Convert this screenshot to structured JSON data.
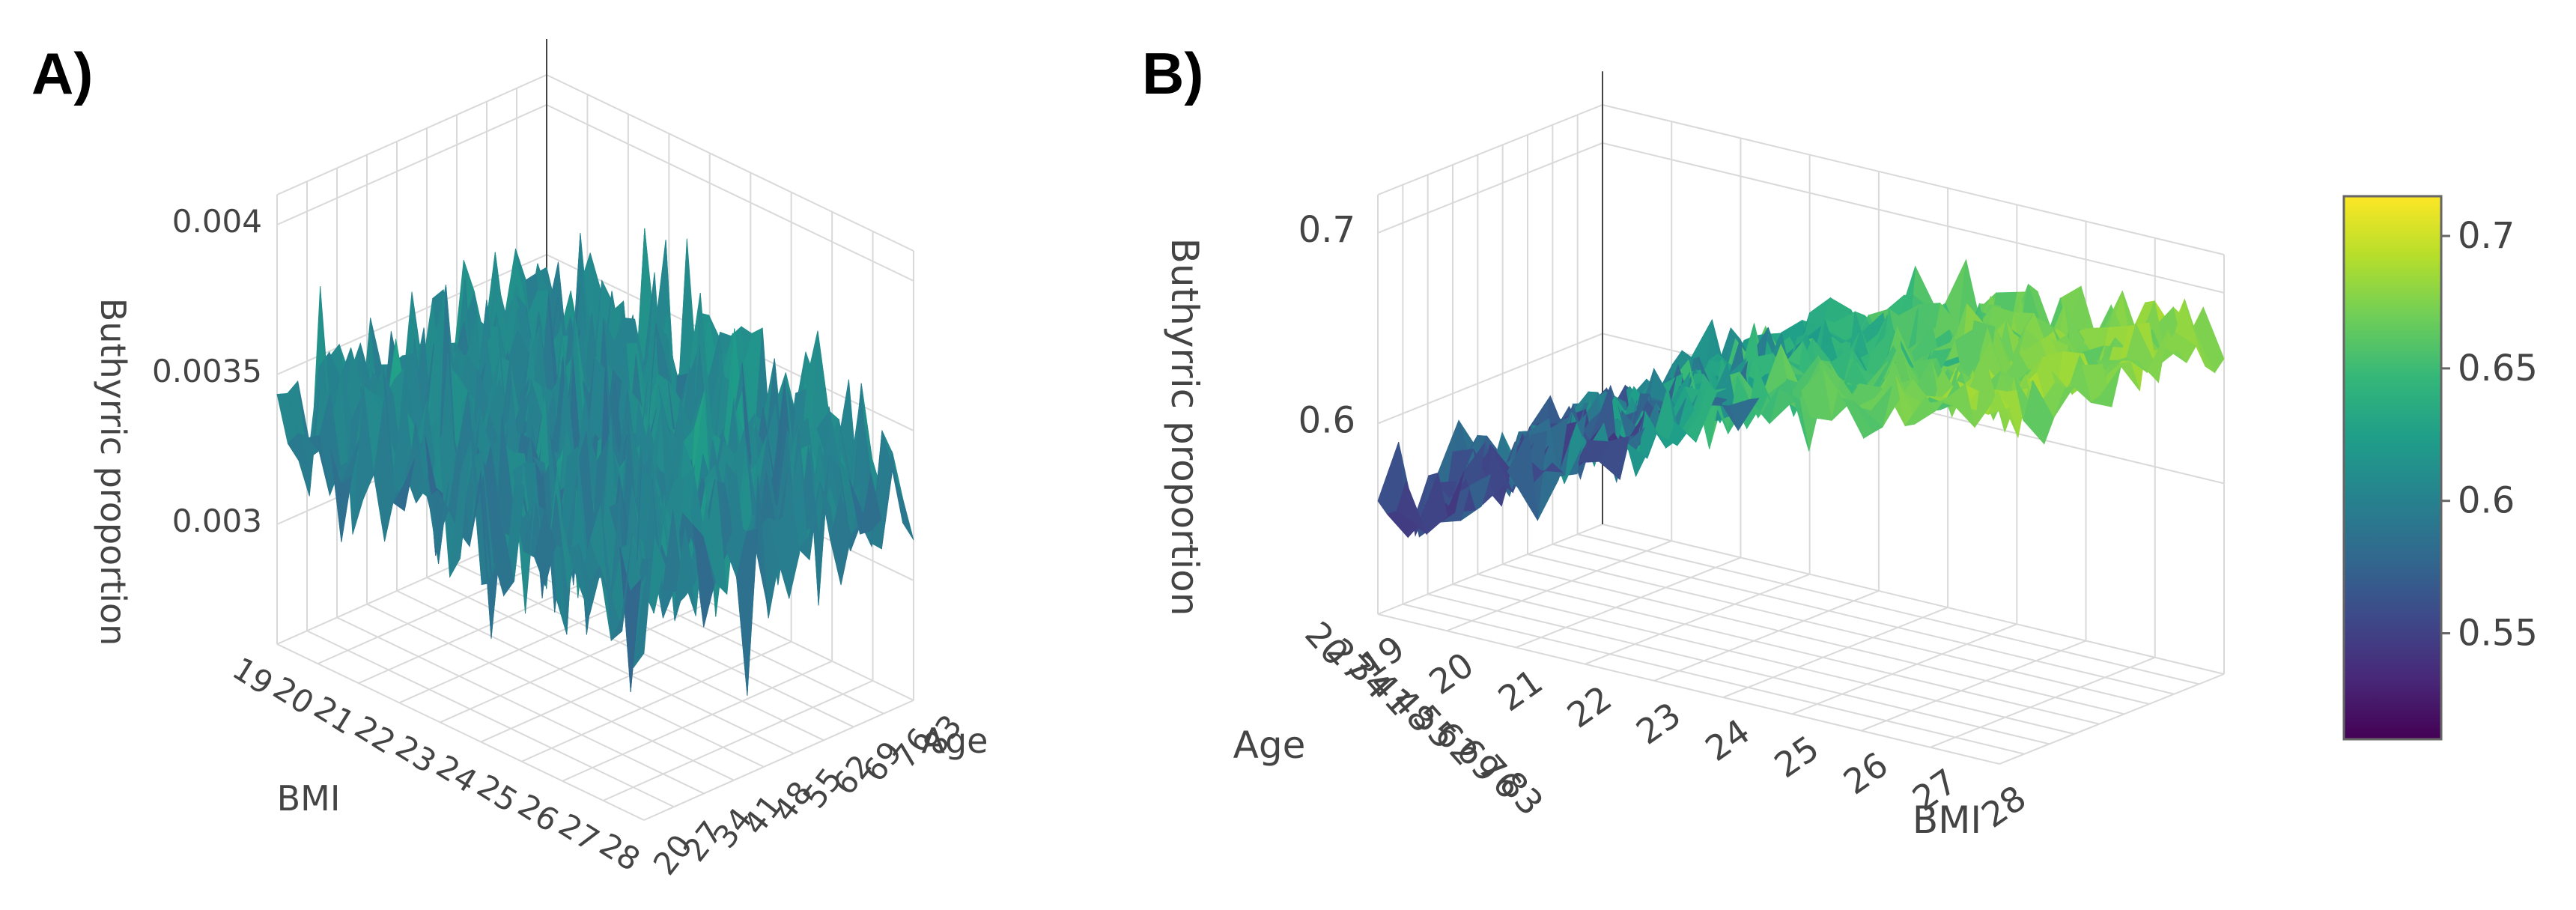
{
  "colors": {
    "viridis": [
      "#440154",
      "#482878",
      "#3e4989",
      "#31688e",
      "#26828e",
      "#1f9e89",
      "#35b779",
      "#6ece58",
      "#b5de2b",
      "#fde725"
    ],
    "grid": "#d9d9d9",
    "text": "#444444"
  },
  "panels": [
    {
      "label": "A)"
    },
    {
      "label": "B)"
    }
  ],
  "chart_data": [
    {
      "type": "surface",
      "panel": "A)",
      "xlabel": "BMI",
      "ylabel": "Age",
      "zlabel": "Buthyrric proportion",
      "x_ticks": [
        "19",
        "20",
        "21",
        "22",
        "23",
        "24",
        "25",
        "26",
        "27",
        "28"
      ],
      "y_ticks": [
        "20",
        "27",
        "34",
        "41",
        "48",
        "55",
        "62",
        "69",
        "76",
        "83"
      ],
      "z_ticks": [
        "0.003",
        "0.0035",
        "0.004"
      ],
      "x_range": [
        19,
        28
      ],
      "y_range": [
        20,
        83
      ],
      "z_range": [
        0.0026,
        0.0041
      ],
      "surface_mean": 0.00335,
      "surface_noise": 0.0003,
      "grid": true
    },
    {
      "type": "surface",
      "panel": "B)",
      "xlabel": "BMI",
      "ylabel": "Age",
      "zlabel": "Buthyrric proportion",
      "x_ticks": [
        "19",
        "20",
        "21",
        "22",
        "23",
        "24",
        "25",
        "26",
        "27",
        "28"
      ],
      "y_ticks": [
        "20",
        "27",
        "34",
        "41",
        "48",
        "55",
        "62",
        "69",
        "76",
        "83"
      ],
      "z_ticks": [
        "0.6",
        "0.7"
      ],
      "x_range": [
        19,
        28
      ],
      "y_range": [
        20,
        83
      ],
      "z_range": [
        0.5,
        0.72
      ],
      "surface_start": 0.55,
      "surface_end": 0.68,
      "surface_noise": 0.02,
      "grid": true,
      "colorbar": {
        "ticks": [
          "0.55",
          "0.6",
          "0.65",
          "0.7"
        ],
        "range": [
          0.51,
          0.715
        ]
      }
    }
  ]
}
